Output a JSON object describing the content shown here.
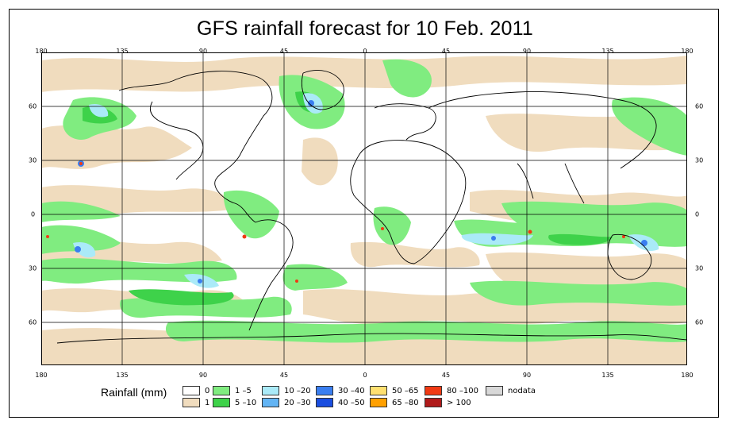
{
  "title": "GFS rainfall forecast for 10 Feb. 2011",
  "lon_ticks_top": [
    "180",
    "135",
    "90",
    "45",
    "0",
    "45",
    "90",
    "135",
    "180"
  ],
  "lon_ticks_bottom": [
    "180",
    "135",
    "90",
    "45",
    "0",
    "45",
    "90",
    "135",
    "180"
  ],
  "lat_ticks_left": [
    "60",
    "30",
    "0",
    "30",
    "60"
  ],
  "lat_ticks_right": [
    "60",
    "30",
    "0",
    "30",
    "60"
  ],
  "legend": {
    "title": "Rainfall (mm)",
    "items": [
      {
        "label": "0",
        "color": "#ffffff"
      },
      {
        "label": "1",
        "color": "#f0dcbe"
      },
      {
        "label": "1 –5",
        "color": "#80ec80"
      },
      {
        "label": "5 –10",
        "color": "#3ed24a"
      },
      {
        "label": "10 –20",
        "color": "#aaeaf8"
      },
      {
        "label": "20 –30",
        "color": "#62b4f4"
      },
      {
        "label": "30 –40",
        "color": "#3a7ef0"
      },
      {
        "label": "40 –50",
        "color": "#1a4ee0"
      },
      {
        "label": "50 –65",
        "color": "#ffe070"
      },
      {
        "label": "65 –80",
        "color": "#ffa000"
      },
      {
        "label": "80 –100",
        "color": "#f03a14"
      },
      {
        "label": "> 100",
        "color": "#b01a1a"
      },
      {
        "label": "nodata",
        "color": "#d8d8d8"
      }
    ]
  }
}
